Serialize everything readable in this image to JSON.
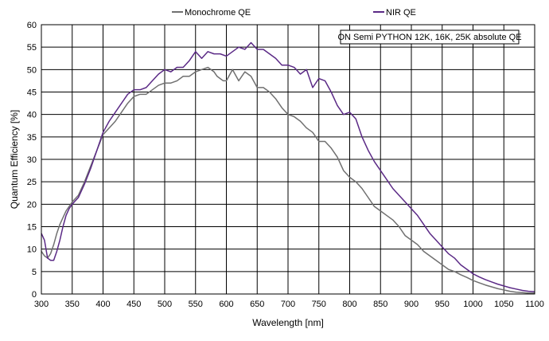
{
  "chart_data": {
    "type": "line",
    "title": "",
    "xlabel": "Wavelength [nm]",
    "ylabel": "Quantum Efficiency [%]",
    "xlim": [
      300,
      1100
    ],
    "ylim": [
      0,
      60
    ],
    "xticks": [
      300,
      350,
      400,
      450,
      500,
      550,
      600,
      650,
      700,
      750,
      800,
      850,
      900,
      950,
      1000,
      1050,
      1100
    ],
    "yticks": [
      0,
      5,
      10,
      15,
      20,
      25,
      30,
      35,
      40,
      45,
      50,
      55,
      60
    ],
    "grid": true,
    "legend_position": "top-center",
    "annotation": "ON Semi PYTHON 12K, 16K, 25K absolute QE",
    "series": [
      {
        "name": "Monochrome QE",
        "color": "#707070",
        "x": [
          300,
          305,
          310,
          315,
          320,
          325,
          330,
          335,
          340,
          345,
          350,
          360,
          370,
          380,
          390,
          400,
          410,
          420,
          430,
          440,
          450,
          460,
          470,
          480,
          490,
          500,
          510,
          520,
          530,
          540,
          550,
          560,
          570,
          580,
          585,
          590,
          595,
          600,
          610,
          620,
          630,
          640,
          650,
          660,
          670,
          680,
          690,
          700,
          710,
          720,
          730,
          740,
          750,
          760,
          770,
          780,
          790,
          800,
          810,
          820,
          830,
          840,
          850,
          860,
          870,
          880,
          890,
          900,
          910,
          920,
          930,
          940,
          950,
          960,
          970,
          980,
          990,
          1000,
          1010,
          1020,
          1030,
          1040,
          1050,
          1060,
          1070,
          1080,
          1090,
          1100
        ],
        "values": [
          9.5,
          8.5,
          8.0,
          9.0,
          11.0,
          13.5,
          15.5,
          17.0,
          18.5,
          19.5,
          20.5,
          22.0,
          25.0,
          28.5,
          32.0,
          35.5,
          37.0,
          38.5,
          40.5,
          42.5,
          44.0,
          44.5,
          44.5,
          45.5,
          46.5,
          47.0,
          47.0,
          47.5,
          48.5,
          48.5,
          49.5,
          50.0,
          50.5,
          49.5,
          48.5,
          48.0,
          47.5,
          47.5,
          50.0,
          47.5,
          49.5,
          48.5,
          46.0,
          46.0,
          45.0,
          43.5,
          41.5,
          40.0,
          39.5,
          38.5,
          37.0,
          36.0,
          34.0,
          34.0,
          32.5,
          30.5,
          27.5,
          26.0,
          25.0,
          23.5,
          21.5,
          19.5,
          18.5,
          17.5,
          16.5,
          15.0,
          13.0,
          12.0,
          11.0,
          9.5,
          8.5,
          7.5,
          6.5,
          5.5,
          5.0,
          4.3,
          3.7,
          3.0,
          2.5,
          2.0,
          1.6,
          1.2,
          0.9,
          0.6,
          0.4,
          0.3,
          0.2,
          0.2
        ]
      },
      {
        "name": "NIR QE",
        "color": "#5b2a86",
        "x": [
          300,
          305,
          310,
          315,
          320,
          325,
          330,
          335,
          340,
          345,
          350,
          360,
          370,
          380,
          390,
          400,
          410,
          420,
          430,
          440,
          450,
          460,
          470,
          480,
          490,
          500,
          510,
          520,
          530,
          540,
          550,
          560,
          570,
          580,
          590,
          600,
          610,
          620,
          630,
          640,
          650,
          660,
          670,
          680,
          690,
          700,
          710,
          720,
          730,
          740,
          750,
          760,
          770,
          780,
          790,
          800,
          810,
          820,
          830,
          840,
          850,
          860,
          870,
          880,
          890,
          900,
          910,
          920,
          930,
          940,
          950,
          960,
          970,
          980,
          990,
          1000,
          1010,
          1020,
          1030,
          1040,
          1050,
          1060,
          1070,
          1080,
          1090,
          1100
        ],
        "values": [
          13.5,
          12.0,
          8.0,
          7.5,
          7.5,
          9.5,
          12.0,
          15.0,
          17.5,
          19.0,
          20.0,
          21.5,
          24.5,
          28.0,
          32.0,
          36.0,
          38.5,
          40.5,
          42.5,
          44.5,
          45.5,
          45.5,
          46.0,
          47.5,
          49.0,
          50.0,
          49.5,
          50.5,
          50.5,
          52.0,
          54.0,
          52.5,
          54.0,
          53.5,
          53.5,
          53.0,
          54.0,
          55.0,
          54.5,
          56.0,
          54.5,
          54.5,
          53.5,
          52.5,
          51.0,
          51.0,
          50.5,
          49.0,
          50.0,
          46.0,
          48.0,
          47.5,
          45.0,
          42.0,
          40.0,
          40.5,
          39.0,
          35.0,
          32.0,
          29.5,
          27.5,
          25.5,
          23.5,
          22.0,
          20.5,
          19.0,
          17.5,
          15.5,
          13.5,
          12.0,
          10.5,
          9.0,
          8.0,
          6.5,
          5.5,
          4.5,
          3.8,
          3.2,
          2.7,
          2.2,
          1.8,
          1.4,
          1.1,
          0.8,
          0.6,
          0.5
        ]
      }
    ]
  }
}
